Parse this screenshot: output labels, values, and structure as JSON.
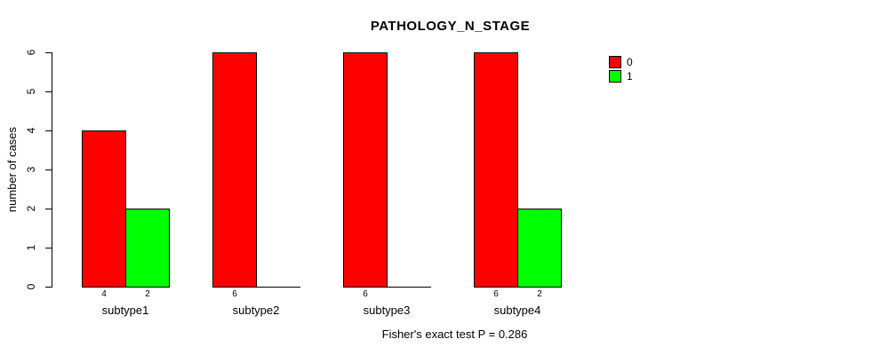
{
  "title": "PATHOLOGY_N_STAGE",
  "chart_data": {
    "type": "bar",
    "categories": [
      "subtype1",
      "subtype2",
      "subtype3",
      "subtype4"
    ],
    "series": [
      {
        "name": "0",
        "color": "#FF0000",
        "values": [
          4,
          6,
          6,
          6
        ]
      },
      {
        "name": "1",
        "color": "#00FF00",
        "values": [
          2,
          0,
          0,
          2
        ]
      }
    ],
    "bar_value_labels": [
      [
        "4",
        "2"
      ],
      [
        "6",
        ""
      ],
      [
        "6",
        ""
      ],
      [
        "6",
        "2"
      ]
    ],
    "title": "PATHOLOGY_N_STAGE",
    "xlabel": "",
    "ylabel": "number of cases",
    "ylim": [
      0,
      6
    ],
    "yticks": [
      "0",
      "1",
      "2",
      "3",
      "4",
      "5",
      "6"
    ],
    "grid": false,
    "legend_position": "top-right",
    "legend": [
      {
        "label": "0",
        "color": "#FF0000"
      },
      {
        "label": "1",
        "color": "#00FF00"
      }
    ],
    "footnote": "Fisher's exact test P = 0.286"
  },
  "colors": {
    "background": "#FFFFFF",
    "axis": "#000000",
    "text": "#000000",
    "series0": "#FF0000",
    "series1": "#00FF00"
  }
}
